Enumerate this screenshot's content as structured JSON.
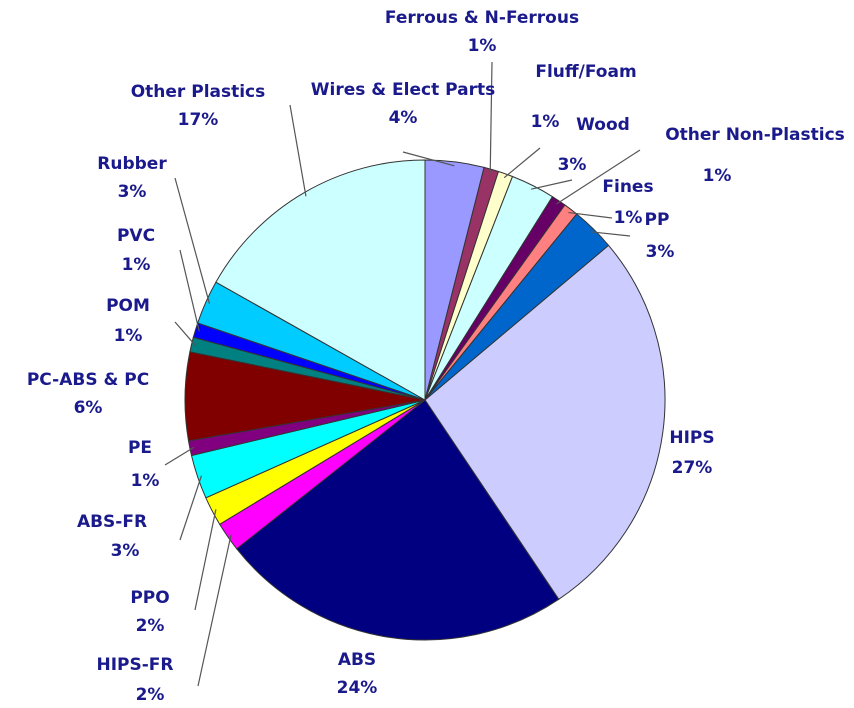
{
  "chart_data": {
    "type": "pie",
    "categories": [
      "Wires & Elect Parts",
      "Ferrous & N-Ferrous",
      "Fluff/Foam",
      "Wood",
      "Other Non-Plastics",
      "Fines",
      "PP",
      "HIPS",
      "ABS",
      "HIPS-FR",
      "PPO",
      "ABS-FR",
      "PE",
      "PC-ABS & PC",
      "POM",
      "PVC",
      "Rubber",
      "Other Plastics"
    ],
    "values": [
      4,
      1,
      1,
      3,
      1,
      1,
      3,
      27,
      24,
      2,
      2,
      3,
      1,
      6,
      1,
      1,
      3,
      17
    ],
    "value_labels": [
      "4%",
      "1%",
      "1%",
      "3%",
      "1%",
      "1%",
      "3%",
      "27%",
      "24%",
      "2%",
      "2%",
      "3%",
      "1%",
      "6%",
      "1%",
      "1%",
      "3%",
      "17%"
    ],
    "colors": [
      "#9999ff",
      "#993366",
      "#ffffcc",
      "#ccffff",
      "#660066",
      "#ff8080",
      "#0066cc",
      "#ccccff",
      "#000080",
      "#ff00ff",
      "#ffff00",
      "#00ffff",
      "#800080",
      "#800000",
      "#008080",
      "#0000ff",
      "#00ccff",
      "#ccffff"
    ]
  }
}
